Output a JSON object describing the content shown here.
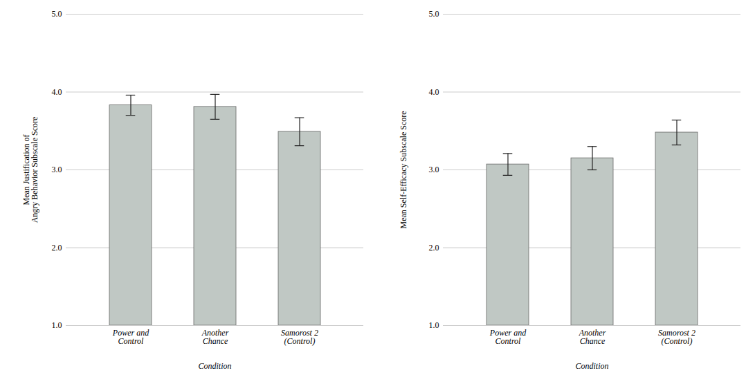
{
  "chart_data": [
    {
      "type": "bar",
      "xlabel": "Condition",
      "ylabel": "Mean Justification of\nAngry Behavior Subscale Score",
      "categories": [
        "Power and\nControl",
        "Another\nChance",
        "Samorost 2\n(Control)"
      ],
      "values": [
        3.83,
        3.81,
        3.49
      ],
      "errors": [
        0.13,
        0.16,
        0.18
      ],
      "color": "#c0c8c4",
      "ylim": [
        1,
        5
      ],
      "yticks": [
        1,
        2,
        3,
        4,
        5
      ],
      "grid": true
    },
    {
      "type": "bar",
      "xlabel": "Condition",
      "ylabel": "Mean Self-Efficacy Subscale Score",
      "categories": [
        "Power and\nControl",
        "Another\nChance",
        "Samorost 2\n(Control)"
      ],
      "values": [
        3.07,
        3.15,
        3.48
      ],
      "errors": [
        0.14,
        0.15,
        0.16
      ],
      "color": "#c0c8c4",
      "ylim": [
        1,
        5
      ],
      "yticks": [
        1,
        2,
        3,
        4,
        5
      ],
      "grid": true
    }
  ]
}
